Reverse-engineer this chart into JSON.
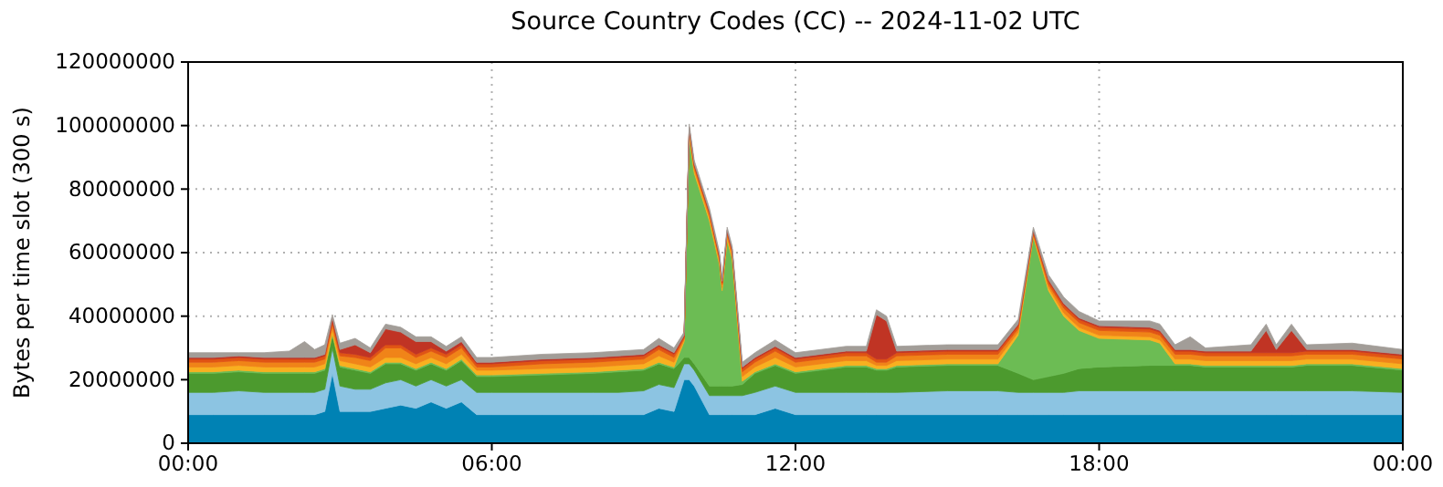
{
  "chart_data": {
    "type": "area",
    "stacked": true,
    "title": "Source Country Codes (CC) -- 2024-11-02 UTC",
    "ylabel": "Bytes per time slot (300 s)",
    "grid": true,
    "x": [
      0,
      0.5,
      1,
      1.5,
      2,
      2.3,
      2.5,
      2.7,
      2.85,
      3,
      3.3,
      3.6,
      3.9,
      4.2,
      4.5,
      4.8,
      5.1,
      5.4,
      5.7,
      6,
      7,
      8,
      8.5,
      9,
      9.3,
      9.6,
      9.8,
      9.9,
      10,
      10.3,
      10.5,
      10.55,
      10.65,
      10.75,
      10.95,
      11.2,
      11.6,
      12,
      13,
      13.4,
      13.6,
      13.8,
      14,
      15,
      16,
      16.4,
      16.7,
      17,
      17.3,
      17.6,
      18,
      19,
      19.2,
      19.5,
      19.8,
      20.1,
      21,
      21.3,
      21.5,
      21.8,
      22.1,
      23,
      24
    ],
    "xlim": [
      0,
      24
    ],
    "xticks": [
      {
        "value": 0,
        "label": "00:00"
      },
      {
        "value": 6,
        "label": "06:00"
      },
      {
        "value": 12,
        "label": "12:00"
      },
      {
        "value": 18,
        "label": "18:00"
      },
      {
        "value": 24,
        "label": "00:00"
      }
    ],
    "ylim": [
      0,
      120000000
    ],
    "yticks": [
      0,
      20000000,
      40000000,
      60000000,
      80000000,
      100000000,
      120000000
    ],
    "series": [
      {
        "color": "#0082b4",
        "values": [
          9000000,
          9000000,
          9000000,
          9000000,
          9000000,
          9000000,
          9000000,
          10000000,
          22000000,
          10000000,
          10000000,
          10000000,
          11000000,
          12000000,
          11000000,
          13000000,
          11000000,
          13000000,
          9000000,
          9000000,
          9000000,
          9000000,
          9000000,
          9000000,
          11000000,
          10000000,
          20000000,
          20000000,
          18000000,
          9000000,
          9000000,
          9000000,
          9000000,
          9000000,
          9000000,
          9000000,
          11000000,
          9000000,
          9000000,
          9000000,
          9000000,
          9000000,
          9000000,
          9000000,
          9000000,
          9000000,
          9000000,
          9000000,
          9000000,
          9000000,
          9000000,
          9000000,
          9000000,
          9000000,
          9000000,
          9000000,
          9000000,
          9000000,
          9000000,
          9000000,
          9000000,
          9000000,
          9000000
        ]
      },
      {
        "color": "#8cc4e2",
        "values": [
          7000000,
          7000000,
          7500000,
          7000000,
          7000000,
          7000000,
          7000000,
          7000000,
          8000000,
          8000000,
          7000000,
          7000000,
          8000000,
          8000000,
          7000000,
          7000000,
          7000000,
          7000000,
          7000000,
          7000000,
          7000000,
          7000000,
          7000000,
          7500000,
          7500000,
          7500000,
          5000000,
          5000000,
          5000000,
          6000000,
          6000000,
          6000000,
          6000000,
          6000000,
          6000000,
          7000000,
          7000000,
          7000000,
          7000000,
          7000000,
          7000000,
          7000000,
          7000000,
          7500000,
          7500000,
          7000000,
          7000000,
          7000000,
          7000000,
          7500000,
          7500000,
          7500000,
          7500000,
          7500000,
          7500000,
          7500000,
          7500000,
          7500000,
          7500000,
          7500000,
          7500000,
          7500000,
          7000000
        ]
      },
      {
        "color": "#4c9a2e",
        "values": [
          6000000,
          6000000,
          6000000,
          6000000,
          6000000,
          6000000,
          6000000,
          6000000,
          4000000,
          6000000,
          6000000,
          5000000,
          6000000,
          5000000,
          5000000,
          5000000,
          5000000,
          6000000,
          5000000,
          5000000,
          5500000,
          6000000,
          6500000,
          6500000,
          6500000,
          6000000,
          2000000,
          2000000,
          2000000,
          3000000,
          3000000,
          3000000,
          3000000,
          3000000,
          3500000,
          6000000,
          6500000,
          6000000,
          8000000,
          8000000,
          7000000,
          7000000,
          8000000,
          8000000,
          8000000,
          6000000,
          4000000,
          5000000,
          6000000,
          7000000,
          7500000,
          8000000,
          8000000,
          8000000,
          8000000,
          7500000,
          7500000,
          7500000,
          7500000,
          7500000,
          8000000,
          8000000,
          7000000
        ]
      },
      {
        "color": "#6cbc54",
        "values": [
          500000,
          500000,
          500000,
          500000,
          500000,
          500000,
          500000,
          500000,
          500000,
          500000,
          500000,
          500000,
          500000,
          500000,
          500000,
          500000,
          500000,
          500000,
          500000,
          500000,
          500000,
          500000,
          500000,
          500000,
          500000,
          500000,
          5000000,
          69500000,
          60000000,
          52000000,
          38000000,
          30000000,
          46000000,
          40000000,
          1000000,
          500000,
          500000,
          500000,
          500000,
          500000,
          500000,
          500000,
          500000,
          500000,
          500000,
          12000000,
          45000000,
          27000000,
          18000000,
          12000000,
          9000000,
          8000000,
          7000000,
          500000,
          500000,
          500000,
          500000,
          500000,
          500000,
          500000,
          500000,
          500000,
          500000
        ]
      },
      {
        "color": "#f8b020",
        "values": [
          1500000,
          1500000,
          1500000,
          1500000,
          1500000,
          1500000,
          1500000,
          1500000,
          1500000,
          1500000,
          1500000,
          1500000,
          1500000,
          1500000,
          1500000,
          1500000,
          1500000,
          1500000,
          1500000,
          1500000,
          1500000,
          1500000,
          1500000,
          1500000,
          2000000,
          1500000,
          500000,
          1000000,
          1000000,
          1000000,
          1000000,
          1000000,
          1000000,
          1000000,
          1500000,
          1500000,
          2000000,
          1500000,
          1500000,
          1500000,
          1000000,
          1000000,
          1500000,
          1500000,
          1500000,
          1000000,
          500000,
          1000000,
          1000000,
          1000000,
          1000000,
          1000000,
          1000000,
          1500000,
          1500000,
          1500000,
          1500000,
          1500000,
          1500000,
          1500000,
          1500000,
          1500000,
          1500000
        ]
      },
      {
        "color": "#f08418",
        "values": [
          1500000,
          1500000,
          1500000,
          1500000,
          1500000,
          1500000,
          1500000,
          1500000,
          1500000,
          1500000,
          2000000,
          2000000,
          3000000,
          3000000,
          2000000,
          2000000,
          2000000,
          2000000,
          1000000,
          1000000,
          1500000,
          1500000,
          1500000,
          1500000,
          2000000,
          1500000,
          500000,
          1000000,
          1000000,
          1000000,
          1000000,
          1000000,
          1000000,
          1000000,
          1500000,
          1500000,
          2000000,
          1500000,
          1500000,
          1500000,
          1000000,
          1000000,
          1500000,
          1500000,
          1500000,
          1000000,
          500000,
          1000000,
          1500000,
          1500000,
          1500000,
          1500000,
          1500000,
          1500000,
          1500000,
          1500000,
          1500000,
          1500000,
          1500000,
          1500000,
          1500000,
          1500000,
          1500000
        ]
      },
      {
        "color": "#e05414",
        "values": [
          1000000,
          1000000,
          1000000,
          1000000,
          1000000,
          1000000,
          1000000,
          1000000,
          1000000,
          1000000,
          1000000,
          1000000,
          1000000,
          1000000,
          1000000,
          1000000,
          1000000,
          1000000,
          1000000,
          1000000,
          1000000,
          1000000,
          1000000,
          1000000,
          1000000,
          1000000,
          500000,
          500000,
          500000,
          500000,
          500000,
          500000,
          500000,
          500000,
          1000000,
          1000000,
          1000000,
          1000000,
          1000000,
          1000000,
          1000000,
          1000000,
          1000000,
          1000000,
          1000000,
          1000000,
          500000,
          1000000,
          1000000,
          1000000,
          1000000,
          1000000,
          1000000,
          1000000,
          1000000,
          1000000,
          1000000,
          1000000,
          1000000,
          1000000,
          1000000,
          1000000,
          1000000
        ]
      },
      {
        "color": "#c03424",
        "values": [
          500000,
          500000,
          500000,
          500000,
          500000,
          500000,
          500000,
          500000,
          1000000,
          1000000,
          3000000,
          1500000,
          5000000,
          4000000,
          4000000,
          2000000,
          1000000,
          1000000,
          500000,
          500000,
          500000,
          500000,
          500000,
          500000,
          500000,
          500000,
          500000,
          500000,
          500000,
          500000,
          500000,
          500000,
          500000,
          500000,
          500000,
          500000,
          500000,
          500000,
          500000,
          500000,
          14000000,
          12000000,
          500000,
          500000,
          500000,
          500000,
          500000,
          500000,
          500000,
          500000,
          500000,
          500000,
          500000,
          500000,
          500000,
          500000,
          500000,
          7000000,
          1000000,
          7000000,
          500000,
          500000,
          500000
        ]
      },
      {
        "color": "#a29d98",
        "values": [
          1500000,
          1500000,
          1000000,
          1500000,
          2000000,
          5000000,
          2500000,
          3000000,
          1000000,
          2000000,
          2000000,
          1500000,
          1500000,
          1500000,
          1500000,
          1500000,
          1500000,
          1500000,
          1500000,
          1500000,
          1500000,
          1500000,
          1500000,
          1500000,
          2000000,
          1500000,
          1000000,
          1000000,
          1000000,
          1000000,
          1000000,
          1000000,
          1000000,
          1000000,
          1500000,
          1500000,
          2000000,
          1500000,
          1500000,
          1500000,
          1500000,
          1500000,
          1500000,
          1500000,
          1500000,
          1500000,
          1000000,
          1500000,
          2000000,
          2000000,
          1500000,
          2000000,
          2000000,
          1500000,
          4000000,
          1000000,
          2000000,
          2000000,
          1500000,
          2000000,
          1500000,
          2000000,
          1500000
        ]
      }
    ]
  }
}
